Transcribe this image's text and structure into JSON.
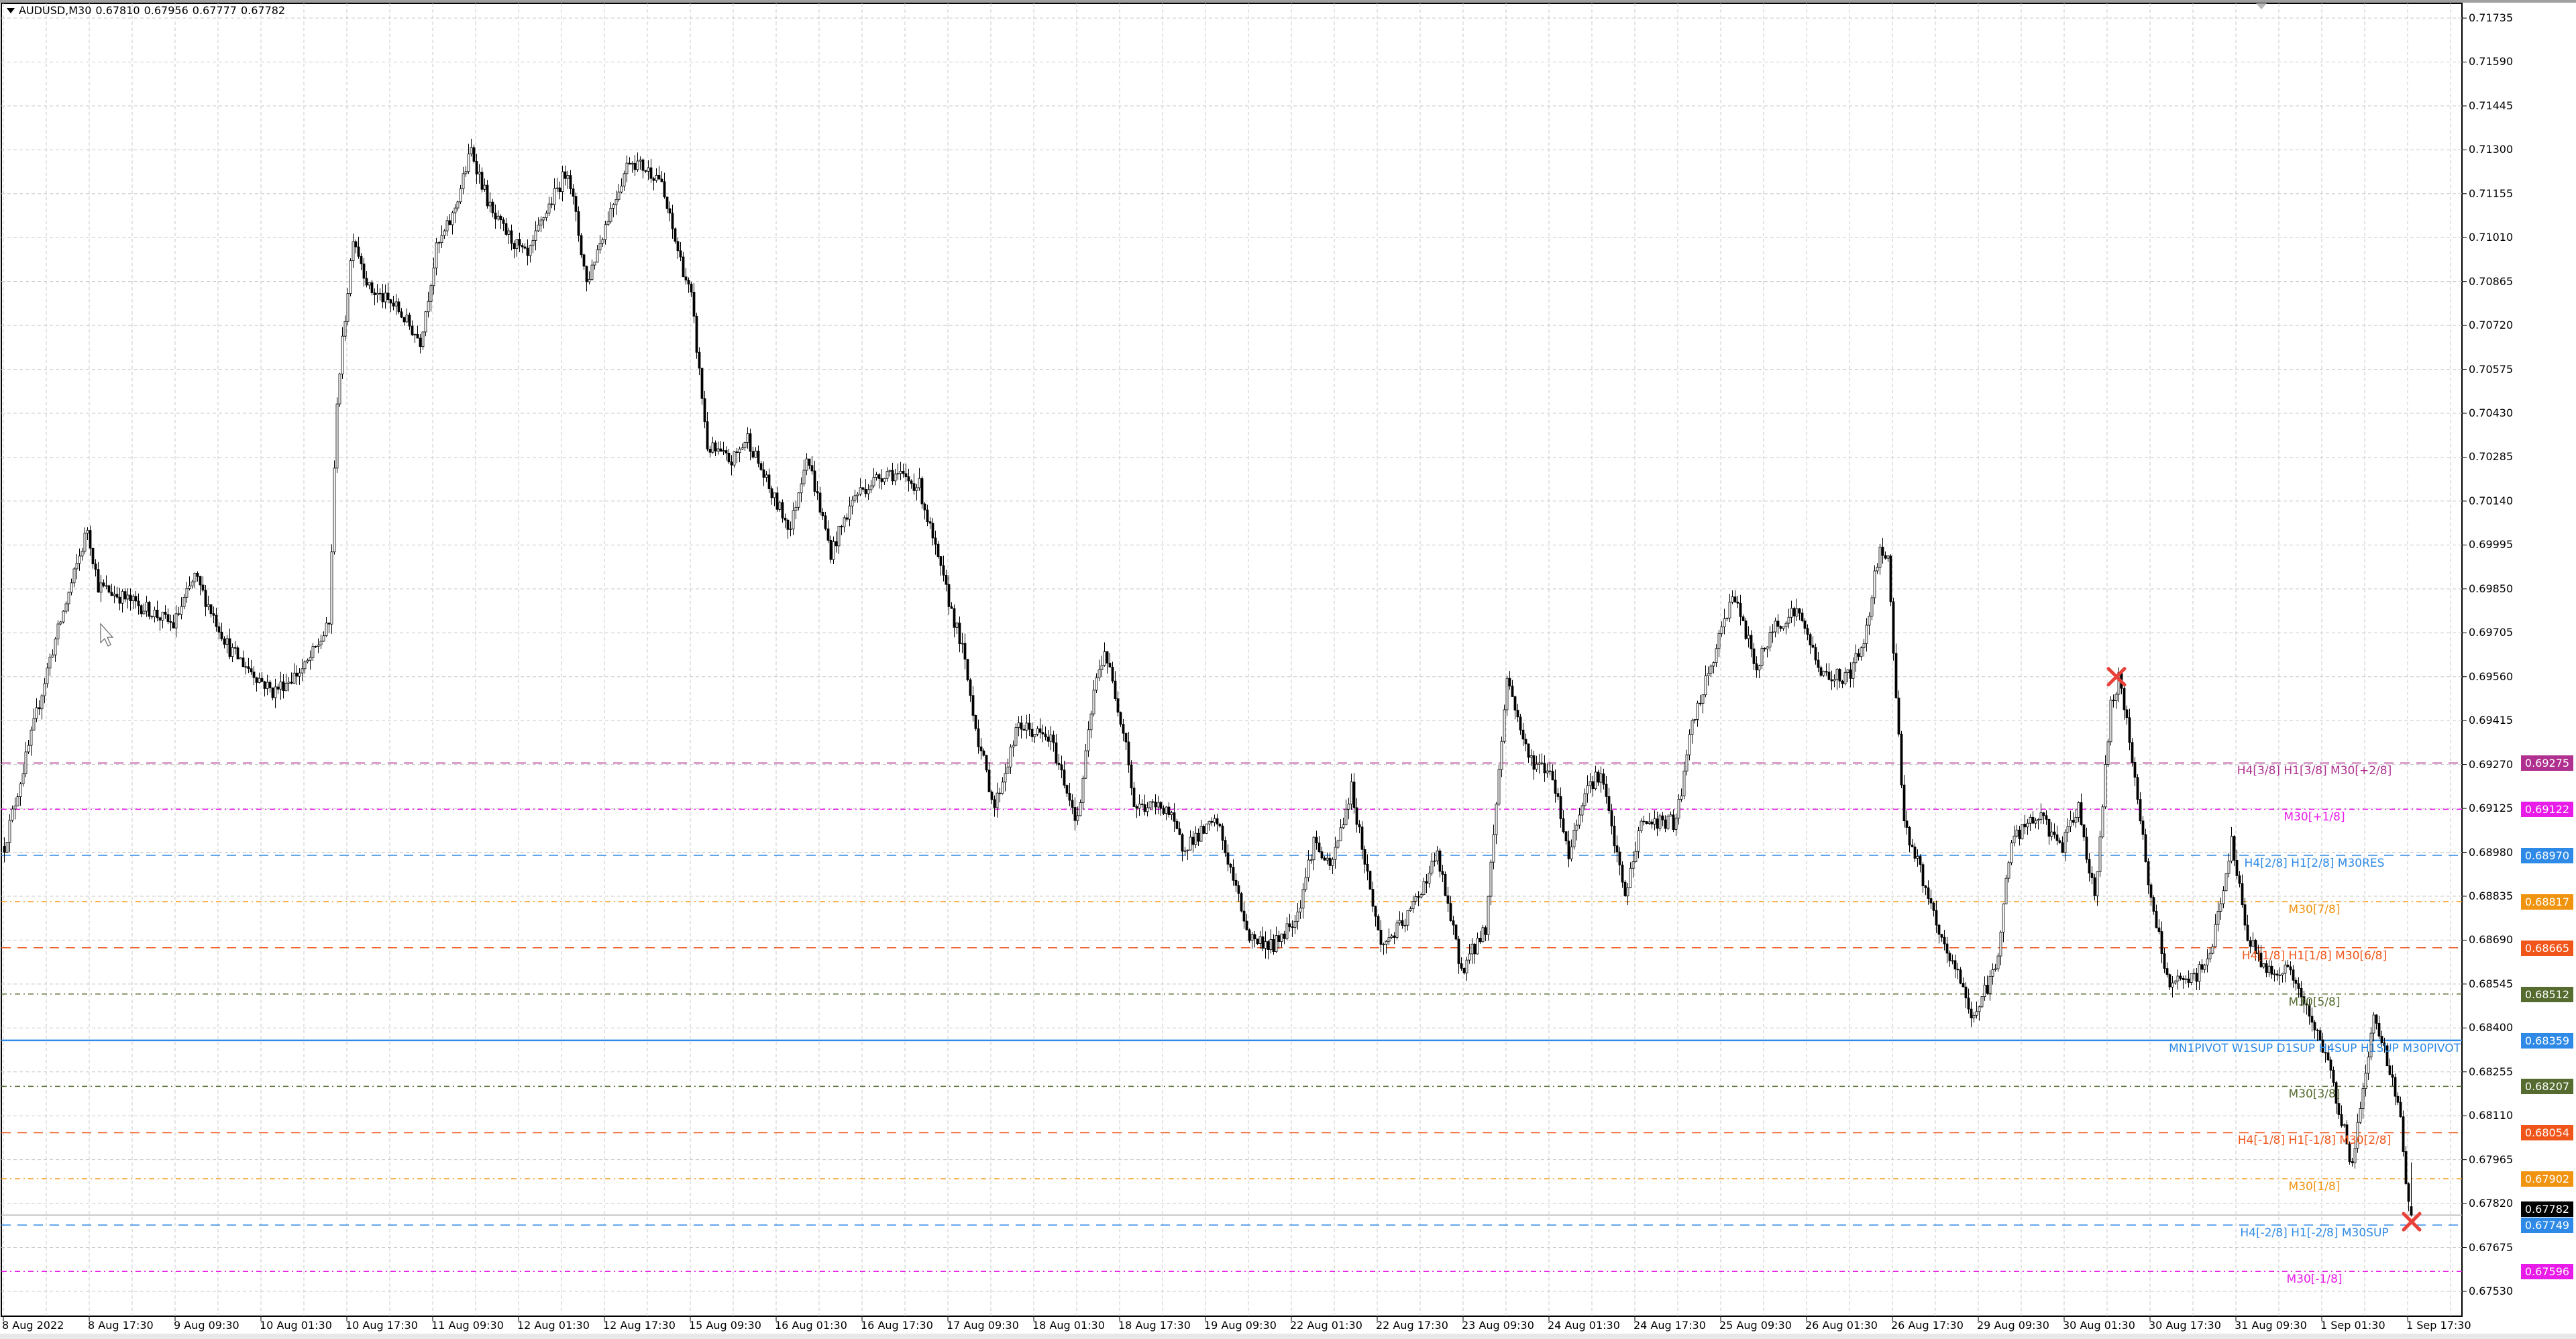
{
  "header": {
    "symbol": "AUDUSD,M30",
    "open": "0.67810",
    "high": "0.67956",
    "low": "0.67777",
    "close": "0.67782",
    "menu_icon": "triangle-down-icon"
  },
  "colors": {
    "background": "#ffffff",
    "grid": "#c8c8c8",
    "candle_bull_fill": "#ffffff",
    "candle_bear_fill": "#000000",
    "candle_outline": "#000000",
    "marker": "#e8413a",
    "current_price_badge": "#000000"
  },
  "chart_data": {
    "type": "candlestick",
    "timeframe": "M30",
    "ylim": [
      0.6746,
      0.718
    ],
    "grid": true,
    "y_ticks": [
      "0.71735",
      "0.71590",
      "0.71445",
      "0.71300",
      "0.71155",
      "0.71010",
      "0.70865",
      "0.70720",
      "0.70575",
      "0.70430",
      "0.70285",
      "0.70140",
      "0.69995",
      "0.69850",
      "0.69705",
      "0.69560",
      "0.69415",
      "0.69270",
      "0.69125",
      "0.68980",
      "0.68835",
      "0.68690",
      "0.68545",
      "0.68400",
      "0.68255",
      "0.68110",
      "0.67965",
      "0.67820",
      "0.67675",
      "0.67530"
    ],
    "x_ticks": [
      "8 Aug 2022",
      "8 Aug 17:30",
      "9 Aug 09:30",
      "10 Aug 01:30",
      "10 Aug 17:30",
      "11 Aug 09:30",
      "12 Aug 01:30",
      "12 Aug 17:30",
      "15 Aug 09:30",
      "16 Aug 01:30",
      "16 Aug 17:30",
      "17 Aug 09:30",
      "18 Aug 01:30",
      "18 Aug 17:30",
      "19 Aug 09:30",
      "22 Aug 01:30",
      "22 Aug 17:30",
      "23 Aug 09:30",
      "24 Aug 01:30",
      "24 Aug 17:30",
      "25 Aug 09:30",
      "26 Aug 01:30",
      "26 Aug 17:30",
      "29 Aug 09:30",
      "30 Aug 01:30",
      "30 Aug 17:30",
      "31 Aug 09:30",
      "1 Sep 01:30",
      "1 Sep 17:30"
    ],
    "first_bar": "2022-08-08 01:30",
    "price_path": [
      [
        "2022-08-08 01:30",
        0.69
      ],
      [
        "2022-08-08 05:30",
        0.6929
      ],
      [
        "2022-08-08 10:00",
        0.6962
      ],
      [
        "2022-08-08 17:00",
        0.7005
      ],
      [
        "2022-08-08 19:00",
        0.6986
      ],
      [
        "2022-08-09 04:30",
        0.6978
      ],
      [
        "2022-08-09 09:00",
        0.6973
      ],
      [
        "2022-08-09 13:00",
        0.6989
      ],
      [
        "2022-08-09 19:30",
        0.6965
      ],
      [
        "2022-08-10 03:30",
        0.6951
      ],
      [
        "2022-08-10 09:30",
        0.6959
      ],
      [
        "2022-08-10 14:00",
        0.6973
      ],
      [
        "2022-08-10 15:30",
        0.7048
      ],
      [
        "2022-08-10 18:30",
        0.7102
      ],
      [
        "2022-08-10 21:30",
        0.7084
      ],
      [
        "2022-08-11 02:30",
        0.7078
      ],
      [
        "2022-08-11 07:00",
        0.7067
      ],
      [
        "2022-08-11 10:00",
        0.7097
      ],
      [
        "2022-08-11 13:00",
        0.7108
      ],
      [
        "2022-08-11 16:30",
        0.713
      ],
      [
        "2022-08-11 20:30",
        0.7108
      ],
      [
        "2022-08-12 03:00",
        0.7094
      ],
      [
        "2022-08-12 06:00",
        0.7108
      ],
      [
        "2022-08-12 10:30",
        0.7124
      ],
      [
        "2022-08-12 14:00",
        0.7086
      ],
      [
        "2022-08-12 18:00",
        0.7108
      ],
      [
        "2022-08-12 22:00",
        0.7127
      ],
      [
        "2022-08-15 03:30",
        0.7121
      ],
      [
        "2022-08-15 06:30",
        0.71
      ],
      [
        "2022-08-15 09:30",
        0.7081
      ],
      [
        "2022-08-15 12:30",
        0.7032
      ],
      [
        "2022-08-15 17:00",
        0.7027
      ],
      [
        "2022-08-15 20:00",
        0.7035
      ],
      [
        "2022-08-16 00:30",
        0.7016
      ],
      [
        "2022-08-16 04:00",
        0.7005
      ],
      [
        "2022-08-16 07:00",
        0.703
      ],
      [
        "2022-08-16 11:30",
        0.6997
      ],
      [
        "2022-08-16 16:00",
        0.7016
      ],
      [
        "2022-08-16 22:00",
        0.7024
      ],
      [
        "2022-08-17 04:00",
        0.7019
      ],
      [
        "2022-08-17 07:30",
        0.6994
      ],
      [
        "2022-08-17 12:00",
        0.6965
      ],
      [
        "2022-08-17 15:00",
        0.6935
      ],
      [
        "2022-08-17 18:00",
        0.6913
      ],
      [
        "2022-08-17 22:30",
        0.694
      ],
      [
        "2022-08-18 04:30",
        0.6935
      ],
      [
        "2022-08-18 09:30",
        0.6908
      ],
      [
        "2022-08-18 12:30",
        0.6951
      ],
      [
        "2022-08-18 14:30",
        0.6965
      ],
      [
        "2022-08-18 18:30",
        0.6935
      ],
      [
        "2022-08-18 20:00",
        0.6913
      ],
      [
        "2022-08-19 02:00",
        0.6913
      ],
      [
        "2022-08-19 05:00",
        0.69
      ],
      [
        "2022-08-19 11:30",
        0.6908
      ],
      [
        "2022-08-19 17:30",
        0.687
      ],
      [
        "2022-08-19 22:00",
        0.6867
      ],
      [
        "2022-08-22 02:30",
        0.6878
      ],
      [
        "2022-08-22 05:30",
        0.6902
      ],
      [
        "2022-08-22 08:30",
        0.6892
      ],
      [
        "2022-08-22 12:30",
        0.6919
      ],
      [
        "2022-08-22 18:00",
        0.6867
      ],
      [
        "2022-08-22 22:30",
        0.6875
      ],
      [
        "2022-08-23 04:30",
        0.6897
      ],
      [
        "2022-08-23 09:00",
        0.6859
      ],
      [
        "2022-08-23 13:30",
        0.6873
      ],
      [
        "2022-08-23 17:30",
        0.6956
      ],
      [
        "2022-08-23 21:30",
        0.6929
      ],
      [
        "2022-08-24 02:00",
        0.6924
      ],
      [
        "2022-08-24 05:00",
        0.6897
      ],
      [
        "2022-08-24 08:00",
        0.6919
      ],
      [
        "2022-08-24 11:00",
        0.6924
      ],
      [
        "2022-08-24 15:30",
        0.6883
      ],
      [
        "2022-08-24 18:30",
        0.6908
      ],
      [
        "2022-08-25 01:00",
        0.6908
      ],
      [
        "2022-08-25 04:00",
        0.694
      ],
      [
        "2022-08-25 08:30",
        0.6965
      ],
      [
        "2022-08-25 11:30",
        0.6984
      ],
      [
        "2022-08-25 16:00",
        0.6959
      ],
      [
        "2022-08-25 19:30",
        0.6973
      ],
      [
        "2022-08-25 23:30",
        0.6978
      ],
      [
        "2022-08-26 04:30",
        0.6956
      ],
      [
        "2022-08-26 09:00",
        0.6956
      ],
      [
        "2022-08-26 12:00",
        0.6967
      ],
      [
        "2022-08-26 15:00",
        0.7
      ],
      [
        "2022-08-26 16:30",
        0.6994
      ],
      [
        "2022-08-26 19:30",
        0.6908
      ],
      [
        "2022-08-26 23:00",
        0.6889
      ],
      [
        "2022-08-29 02:00",
        0.687
      ],
      [
        "2022-08-29 06:30",
        0.6854
      ],
      [
        "2022-08-29 08:00",
        0.6843
      ],
      [
        "2022-08-29 12:30",
        0.6859
      ],
      [
        "2022-08-29 15:30",
        0.6902
      ],
      [
        "2022-08-29 20:30",
        0.691
      ],
      [
        "2022-08-30 01:00",
        0.69
      ],
      [
        "2022-08-30 04:00",
        0.6913
      ],
      [
        "2022-08-30 07:00",
        0.6883
      ],
      [
        "2022-08-30 10:00",
        0.6946
      ],
      [
        "2022-08-30 11:30",
        0.6956
      ],
      [
        "2022-08-30 14:30",
        0.6924
      ],
      [
        "2022-08-30 17:30",
        0.6881
      ],
      [
        "2022-08-30 21:00",
        0.6854
      ],
      [
        "2022-08-31 01:30",
        0.6856
      ],
      [
        "2022-08-31 04:30",
        0.6864
      ],
      [
        "2022-08-31 08:30",
        0.6901
      ],
      [
        "2022-08-31 11:30",
        0.687
      ],
      [
        "2022-08-31 15:00",
        0.6859
      ],
      [
        "2022-08-31 19:30",
        0.6859
      ],
      [
        "2022-08-31 23:00",
        0.6843
      ],
      [
        "2022-09-01 02:00",
        0.6832
      ],
      [
        "2022-09-01 05:00",
        0.681
      ],
      [
        "2022-09-01 07:00",
        0.6794
      ],
      [
        "2022-09-01 09:30",
        0.6827
      ],
      [
        "2022-09-01 11:00",
        0.6843
      ],
      [
        "2022-09-01 14:00",
        0.6827
      ],
      [
        "2022-09-01 16:00",
        0.681
      ],
      [
        "2022-09-01 17:30",
        0.6781
      ]
    ],
    "last_bar": {
      "open": 0.6781,
      "high": 0.67956,
      "low": 0.67777,
      "close": 0.67782
    },
    "current_price": "0.67782",
    "levels": [
      {
        "price": "0.69275",
        "label": "H4[3/8] H1[3/8] M30[+2/8]",
        "color": "#b0308f",
        "dash": "14,10"
      },
      {
        "price": "0.69122",
        "label": "M30[+1/8]",
        "color": "#e81be8",
        "dash": "8,5,2,5"
      },
      {
        "price": "0.68970",
        "label": "H4[2/8] H1[2/8] M30RES",
        "color": "#2e8ae6",
        "dash": "14,10"
      },
      {
        "price": "0.68817",
        "label": "M30[7/8]",
        "color": "#f0930f",
        "dash": "8,5,2,5"
      },
      {
        "price": "0.68665",
        "label": "H4[1/8] H1[1/8] M30[6/8]",
        "color": "#f0561a",
        "dash": "14,10"
      },
      {
        "price": "0.68512",
        "label": "M30[5/8]",
        "color": "#556b2f",
        "dash": "8,5,2,5"
      },
      {
        "price": "0.68359",
        "label": "MN1PIVOT W1SUP D1SUP H4SUP H1SUP M30PIVOT",
        "color": "#2e8ae6",
        "dash": "",
        "align": "right"
      },
      {
        "price": "0.68207",
        "label": "M30[3/8]",
        "color": "#556b2f",
        "dash": "8,5,2,5"
      },
      {
        "price": "0.68054",
        "label": "H4[-1/8] H1[-1/8] M30[2/8]",
        "color": "#f0561a",
        "dash": "14,10"
      },
      {
        "price": "0.67902",
        "label": "M30[1/8]",
        "color": "#f0930f",
        "dash": "8,5,2,5"
      },
      {
        "price": "0.67749",
        "label": "H4[-2/8] H1[-2/8] M30SUP",
        "color": "#2e8ae6",
        "dash": "14,10"
      },
      {
        "price": "0.67596",
        "label": "M30[-1/8]",
        "color": "#e81be8",
        "dash": "8,5,2,5"
      }
    ],
    "markers": [
      {
        "time": "2022-08-30 11:00",
        "price": 0.6956,
        "icon": "cross-marker-icon"
      },
      {
        "time": "2022-09-01 18:00",
        "price": 0.6776,
        "icon": "cross-marker-icon"
      }
    ]
  }
}
